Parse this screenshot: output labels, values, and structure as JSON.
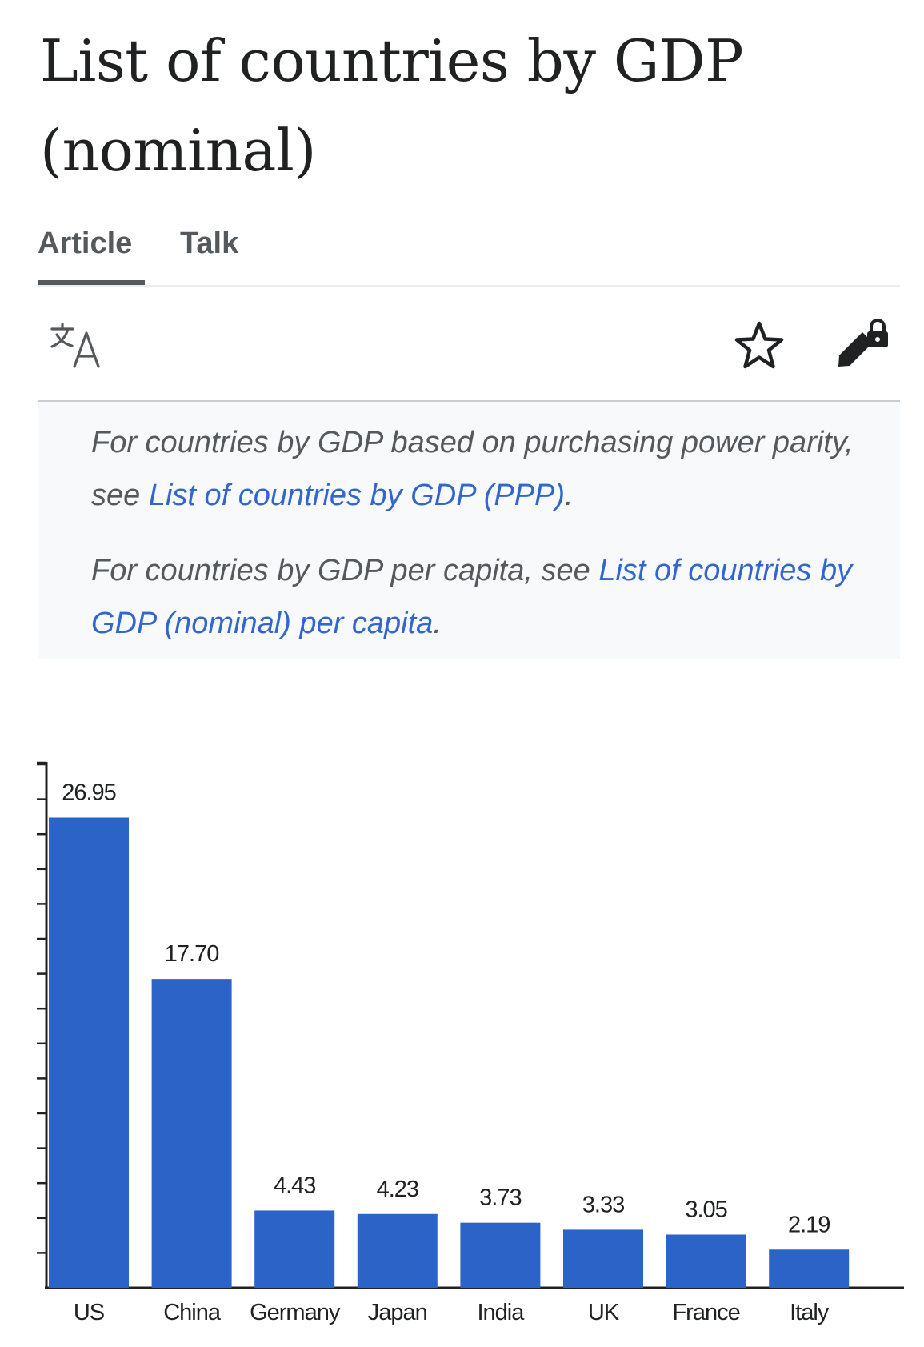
{
  "title": "List of countries by GDP (nominal)",
  "tabs": [
    {
      "label": "Article",
      "active": true
    },
    {
      "label": "Talk",
      "active": false
    }
  ],
  "toolbar": {
    "icons": [
      "language-icon",
      "star-icon",
      "edit-lock-icon"
    ]
  },
  "hatnote": {
    "note1": {
      "prefix": "For countries by GDP based on purchasing power parity, see ",
      "link": "List of countries by GDP (PPP)",
      "suffix": "."
    },
    "note2": {
      "prefix": "For countries by GDP per capita, see ",
      "link": "List of countries by GDP (nominal) per capita",
      "suffix": "."
    }
  },
  "colors": {
    "bar": "#2b64c6",
    "link": "#3366cc",
    "text": "#202122",
    "muted": "#54595d",
    "hatnote_bg": "#f8f9fa"
  },
  "chart_data": {
    "type": "bar",
    "categories": [
      "US",
      "China",
      "Germany",
      "Japan",
      "India",
      "UK",
      "France",
      "Italy"
    ],
    "values": [
      26.95,
      17.7,
      4.43,
      4.23,
      3.73,
      3.33,
      3.05,
      2.19
    ],
    "value_labels": [
      "26.95",
      "17.70",
      "4.43",
      "4.23",
      "3.73",
      "3.33",
      "3.05",
      "2.19"
    ],
    "ylim": [
      0,
      30
    ],
    "title": "",
    "xlabel": "",
    "ylabel": "",
    "grid": false,
    "legend": "none"
  }
}
